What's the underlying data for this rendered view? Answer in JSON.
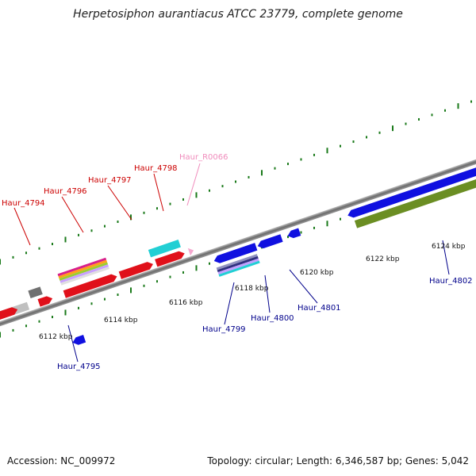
{
  "title": "Herpetosiphon aurantiacus ATCC 23779, complete genome",
  "footer": {
    "accession": "Accession: NC_009972",
    "summary": "Topology: circular; Length: 6,346,587 bp; Genes: 5,042"
  },
  "colors": {
    "forward_label": "#cc0000",
    "reverse_label": "#00008b",
    "rna_label": "#f08cbc",
    "backbone": "#808080",
    "tick": "#1a7a1a"
  },
  "tick_labels": [
    "6112 kbp",
    "6114 kbp",
    "6116 kbp",
    "6118 kbp",
    "6120 kbp",
    "6122 kbp",
    "6124 kbp"
  ],
  "forward_genes": [
    "Haur_4794",
    "Haur_4796",
    "Haur_4797",
    "Haur_4798",
    "Haur_R0066"
  ],
  "reverse_genes": [
    "Haur_4795",
    "Haur_4799",
    "Haur_4800",
    "Haur_4801",
    "Haur_4802"
  ]
}
